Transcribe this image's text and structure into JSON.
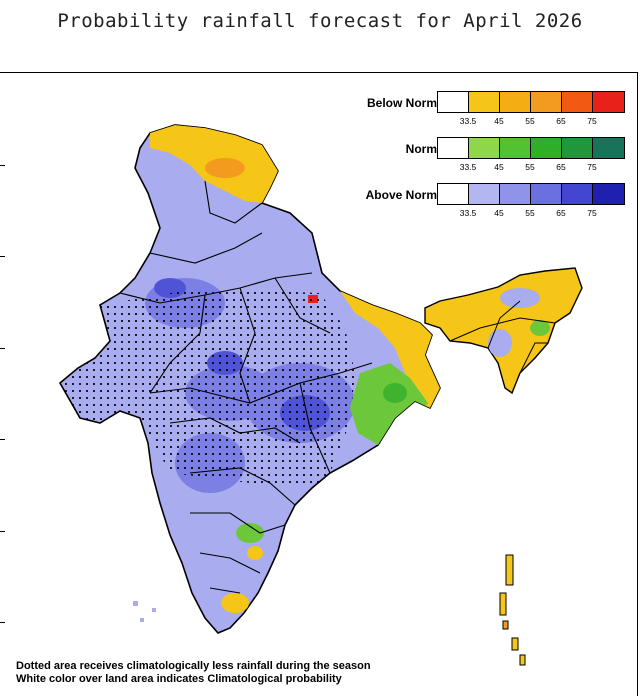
{
  "title": "Probability rainfall forecast for April 2026",
  "legend": [
    {
      "label": "Below Normal",
      "colors": [
        "#ffffff",
        "#f5c518",
        "#f5ad14",
        "#f39b1e",
        "#f25a14",
        "#e8221b"
      ],
      "ticks": [
        "33.5",
        "45",
        "55",
        "65",
        "75"
      ]
    },
    {
      "label": "Normal",
      "colors": [
        "#ffffff",
        "#8ed64a",
        "#52c232",
        "#2fae2a",
        "#22963a",
        "#18735a"
      ],
      "ticks": [
        "33.5",
        "45",
        "55",
        "65",
        "75"
      ]
    },
    {
      "label": "Above Normal",
      "colors": [
        "#ffffff",
        "#b3b6f0",
        "#8f94ea",
        "#6b70e0",
        "#4346d0",
        "#1f1fb0"
      ],
      "ticks": [
        "33.5",
        "45",
        "55",
        "65",
        "75"
      ]
    }
  ],
  "map_colors": {
    "above_normal_base": "#a9acee",
    "above_normal_mid": "#7c80e4",
    "above_normal_high": "#4f53d6",
    "below_normal": "#f5c518",
    "below_normal_high": "#f39b1e",
    "normal": "#6cc83a",
    "normal_high": "#3fb32e",
    "dots": "#000000"
  },
  "footnote": {
    "line1": "Dotted area receives climatologically less rainfall during the season",
    "line2": "White color over land area indicates Climatological probability"
  }
}
